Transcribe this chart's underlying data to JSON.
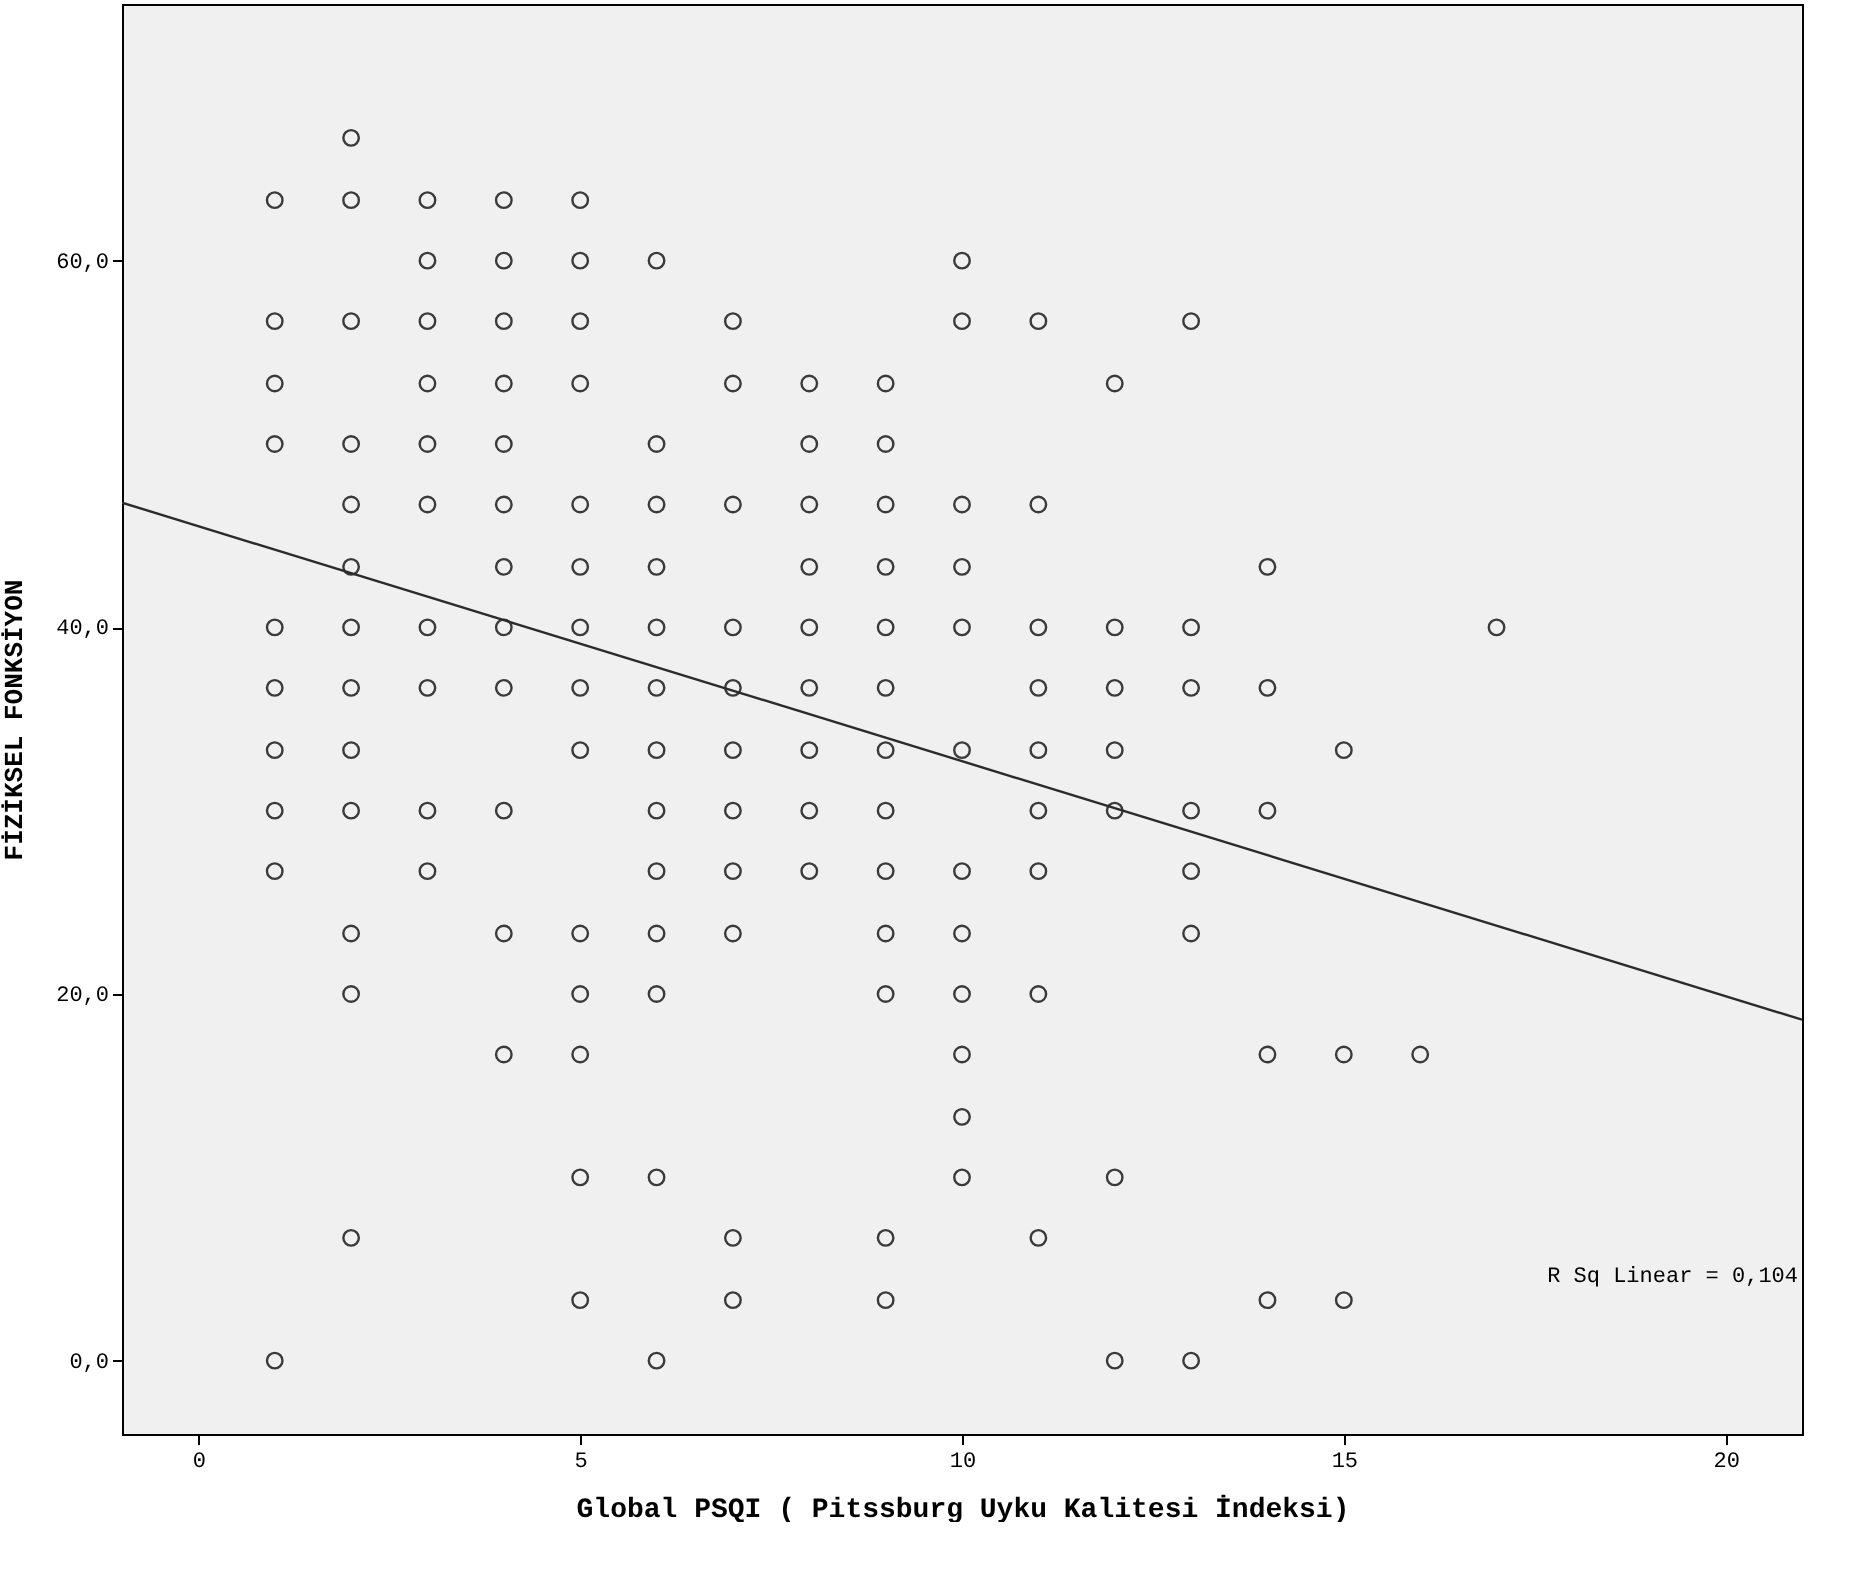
{
  "chart_data": {
    "type": "scatter",
    "xlabel": "Global PSQI ( Pitssburg Uyku Kalitesi İndeksi)",
    "ylabel": "FİZİKSEL FONKSİYON",
    "xlim": [
      -1,
      21
    ],
    "ylim": [
      -4,
      74
    ],
    "xticks": [
      0,
      5,
      10,
      15,
      20
    ],
    "yticks": [
      {
        "value": 0,
        "label": "0,0"
      },
      {
        "value": 20,
        "label": "20,0"
      },
      {
        "value": 40,
        "label": "40,0"
      },
      {
        "value": 60,
        "label": "60,0"
      }
    ],
    "annotations": [
      "R Sq Linear = 0,104"
    ],
    "series": [
      {
        "marker": "circle",
        "color": "#3a3a3a",
        "x": [
          2,
          1,
          2,
          3,
          4,
          5,
          3,
          4,
          5,
          6,
          10,
          1,
          2,
          3,
          4,
          5,
          7,
          10,
          11,
          13,
          1,
          3,
          4,
          5,
          7,
          8,
          9,
          12,
          1,
          2,
          3,
          4,
          6,
          8,
          9,
          2,
          3,
          4,
          5,
          6,
          7,
          8,
          9,
          10,
          11,
          2,
          4,
          5,
          6,
          8,
          9,
          10,
          14,
          1,
          2,
          3,
          4,
          5,
          6,
          7,
          8,
          9,
          10,
          11,
          12,
          13,
          17,
          1,
          2,
          3,
          4,
          5,
          6,
          7,
          8,
          9,
          11,
          12,
          13,
          14,
          1,
          2,
          5,
          6,
          7,
          8,
          9,
          10,
          11,
          12,
          15,
          1,
          2,
          3,
          4,
          6,
          7,
          8,
          9,
          11,
          12,
          13,
          14,
          1,
          3,
          6,
          7,
          8,
          9,
          10,
          11,
          13,
          2,
          4,
          5,
          6,
          7,
          9,
          10,
          13,
          2,
          5,
          6,
          9,
          10,
          11,
          4,
          5,
          10,
          14,
          15,
          16,
          10,
          5,
          6,
          10,
          12,
          2,
          7,
          9,
          11,
          5,
          7,
          9,
          14,
          15,
          1,
          6,
          12,
          13
        ],
        "values": [
          66.7,
          63.3,
          63.3,
          63.3,
          63.3,
          63.3,
          60,
          60,
          60,
          60,
          60,
          56.7,
          56.7,
          56.7,
          56.7,
          56.7,
          56.7,
          56.7,
          56.7,
          56.7,
          53.3,
          53.3,
          53.3,
          53.3,
          53.3,
          53.3,
          53.3,
          53.3,
          50,
          50,
          50,
          50,
          50,
          50,
          50,
          46.7,
          46.7,
          46.7,
          46.7,
          46.7,
          46.7,
          46.7,
          46.7,
          46.7,
          46.7,
          43.3,
          43.3,
          43.3,
          43.3,
          43.3,
          43.3,
          43.3,
          43.3,
          40,
          40,
          40,
          40,
          40,
          40,
          40,
          40,
          40,
          40,
          40,
          40,
          40,
          40,
          36.7,
          36.7,
          36.7,
          36.7,
          36.7,
          36.7,
          36.7,
          36.7,
          36.7,
          36.7,
          36.7,
          36.7,
          36.7,
          33.3,
          33.3,
          33.3,
          33.3,
          33.3,
          33.3,
          33.3,
          33.3,
          33.3,
          33.3,
          33.3,
          30,
          30,
          30,
          30,
          30,
          30,
          30,
          30,
          30,
          30,
          30,
          30,
          26.7,
          26.7,
          26.7,
          26.7,
          26.7,
          26.7,
          26.7,
          26.7,
          26.7,
          23.3,
          23.3,
          23.3,
          23.3,
          23.3,
          23.3,
          23.3,
          23.3,
          20,
          20,
          20,
          20,
          20,
          20,
          16.7,
          16.7,
          16.7,
          16.7,
          16.7,
          16.7,
          13.3,
          10,
          10,
          10,
          10,
          6.7,
          6.7,
          6.7,
          6.7,
          3.3,
          3.3,
          3.3,
          3.3,
          3.3,
          0,
          0,
          0,
          0
        ]
      },
      {
        "type": "line",
        "color": "#2b2b2b",
        "x": [
          -1,
          21
        ],
        "values": [
          46.8,
          18.6
        ]
      }
    ]
  }
}
